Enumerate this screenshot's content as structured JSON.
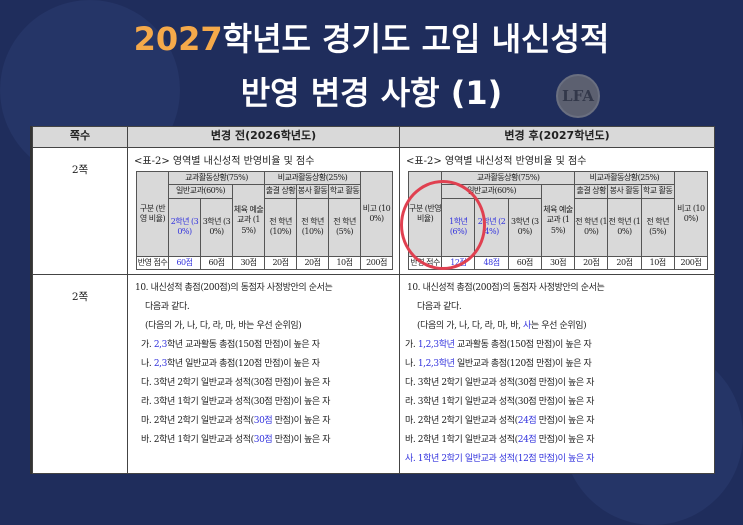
{
  "title": {
    "year": "2027",
    "line1_rest": "학년도 경기도 고입 내신성적",
    "line2": "반영 변경 사항 (1)",
    "seal": "LFA"
  },
  "table": {
    "headers": [
      "쪽수",
      "변경 전(2026학년도)",
      "변경 후(2027학년도)"
    ],
    "rows": [
      {
        "page": "2쪽",
        "before": {
          "caption": "<표-2> 영역별 내신성적 반영비율 및 점수",
          "gubun": "구분 (반영 비율)",
          "curr": "교과활동상황(75%)",
          "general": "일반교과(60%)",
          "noncurr": "비교과활동상황(25%)",
          "pe": "체육 예술 교과 (15%)",
          "att": "출결 상황",
          "vol": "봉사 활동",
          "sch": "학교 활동",
          "etc": "비고 (100%)",
          "g2": "2학년 (30%)",
          "g3": "3학년 (30%)",
          "all10a": "전 학년 (10%)",
          "all10b": "전 학년 (10%)",
          "all5": "전 학년 (5%)",
          "score_label": "반영 점수",
          "scores": [
            "60점",
            "60점",
            "30점",
            "20점",
            "20점",
            "10점",
            "200점"
          ]
        },
        "after": {
          "caption": "<표-2> 영역별 내신성적 반영비율 및 점수",
          "gubun": "구분 (반영 비율)",
          "curr": "교과활동상황(75%)",
          "general": "일반교과(60%)",
          "noncurr": "비교과활동상황(25%)",
          "pe": "체육 예술 교과 (15%)",
          "att": "출결 상황",
          "vol": "봉사 활동",
          "sch": "학교 활동",
          "etc": "비고 (100%)",
          "g1": "1학년 (6%)",
          "g2": "2학년 (24%)",
          "g3": "3학년 (30%)",
          "all10a": "전 학년 (10%)",
          "all10b": "전 학년 (10%)",
          "all5": "전 학년 (5%)",
          "score_label": "반영 점수",
          "scores": [
            "12점",
            "48점",
            "60점",
            "30점",
            "20점",
            "20점",
            "10점",
            "200점"
          ]
        }
      },
      {
        "page": "2쪽",
        "before": {
          "l1": "10. 내신성적 총점(200점)의 동점자 사정방안의 순서는",
          "l2": "다음과 같다.",
          "l3": "(다음의 가, 나, 다, 라, 마, 바는 우선 순위임)",
          "ga": [
            "가. ",
            "2,3",
            "학년 교과활동 총점(150점 만점)이 높은 자"
          ],
          "na": [
            "나. ",
            "2,3",
            "학년 일반교과 총점(120점 만점)이 높은 자"
          ],
          "da": "다. 3학년 2학기 일반교과 성적(30점 만점)이 높은 자",
          "ra": "라. 3학년 1학기 일반교과 성적(30점 만점)이 높은 자",
          "ma": [
            "마. 2학년 2학기 일반교과 성적(",
            "30점",
            " 만점)이 높은 자"
          ],
          "ba": [
            "바. 2학년 1학기 일반교과 성적(",
            "30점",
            " 만점)이 높은 자"
          ]
        },
        "after": {
          "l1": "10. 내신성적 총점(200점)의 동점자 사정방안의 순서는",
          "l2": "다음과 같다.",
          "l3": [
            "(다음의 가, 나, 다, 라, 마, 바, ",
            "사",
            "는 우선 순위임)"
          ],
          "ga": [
            "가. ",
            "1,2,3학년",
            " 교과활동 총점(150점 만점)이 높은 자"
          ],
          "na": [
            "나. ",
            "1,2,3학년",
            " 일반교과 총점(120점 만점)이 높은 자"
          ],
          "da": "다. 3학년 2학기 일반교과 성적(30점 만점)이 높은 자",
          "ra": "라. 3학년 1학기 일반교과 성적(30점 만점)이 높은 자",
          "ma": [
            "마. 2학년 2학기 일반교과 성적(",
            "24점",
            " 만점)이 높은 자"
          ],
          "ba": [
            "바. 2학년 1학기 일반교과 성적(",
            "24점",
            " 만점)이 높은 자"
          ],
          "sa": "사. 1학년 2학기 일반교과 성적(12점 만점)이 높은 자"
        }
      }
    ]
  },
  "colors": {
    "background": "#1f2d5c",
    "year": "#f5a94a",
    "highlight": "#3333dd",
    "circle": "#e04050"
  }
}
